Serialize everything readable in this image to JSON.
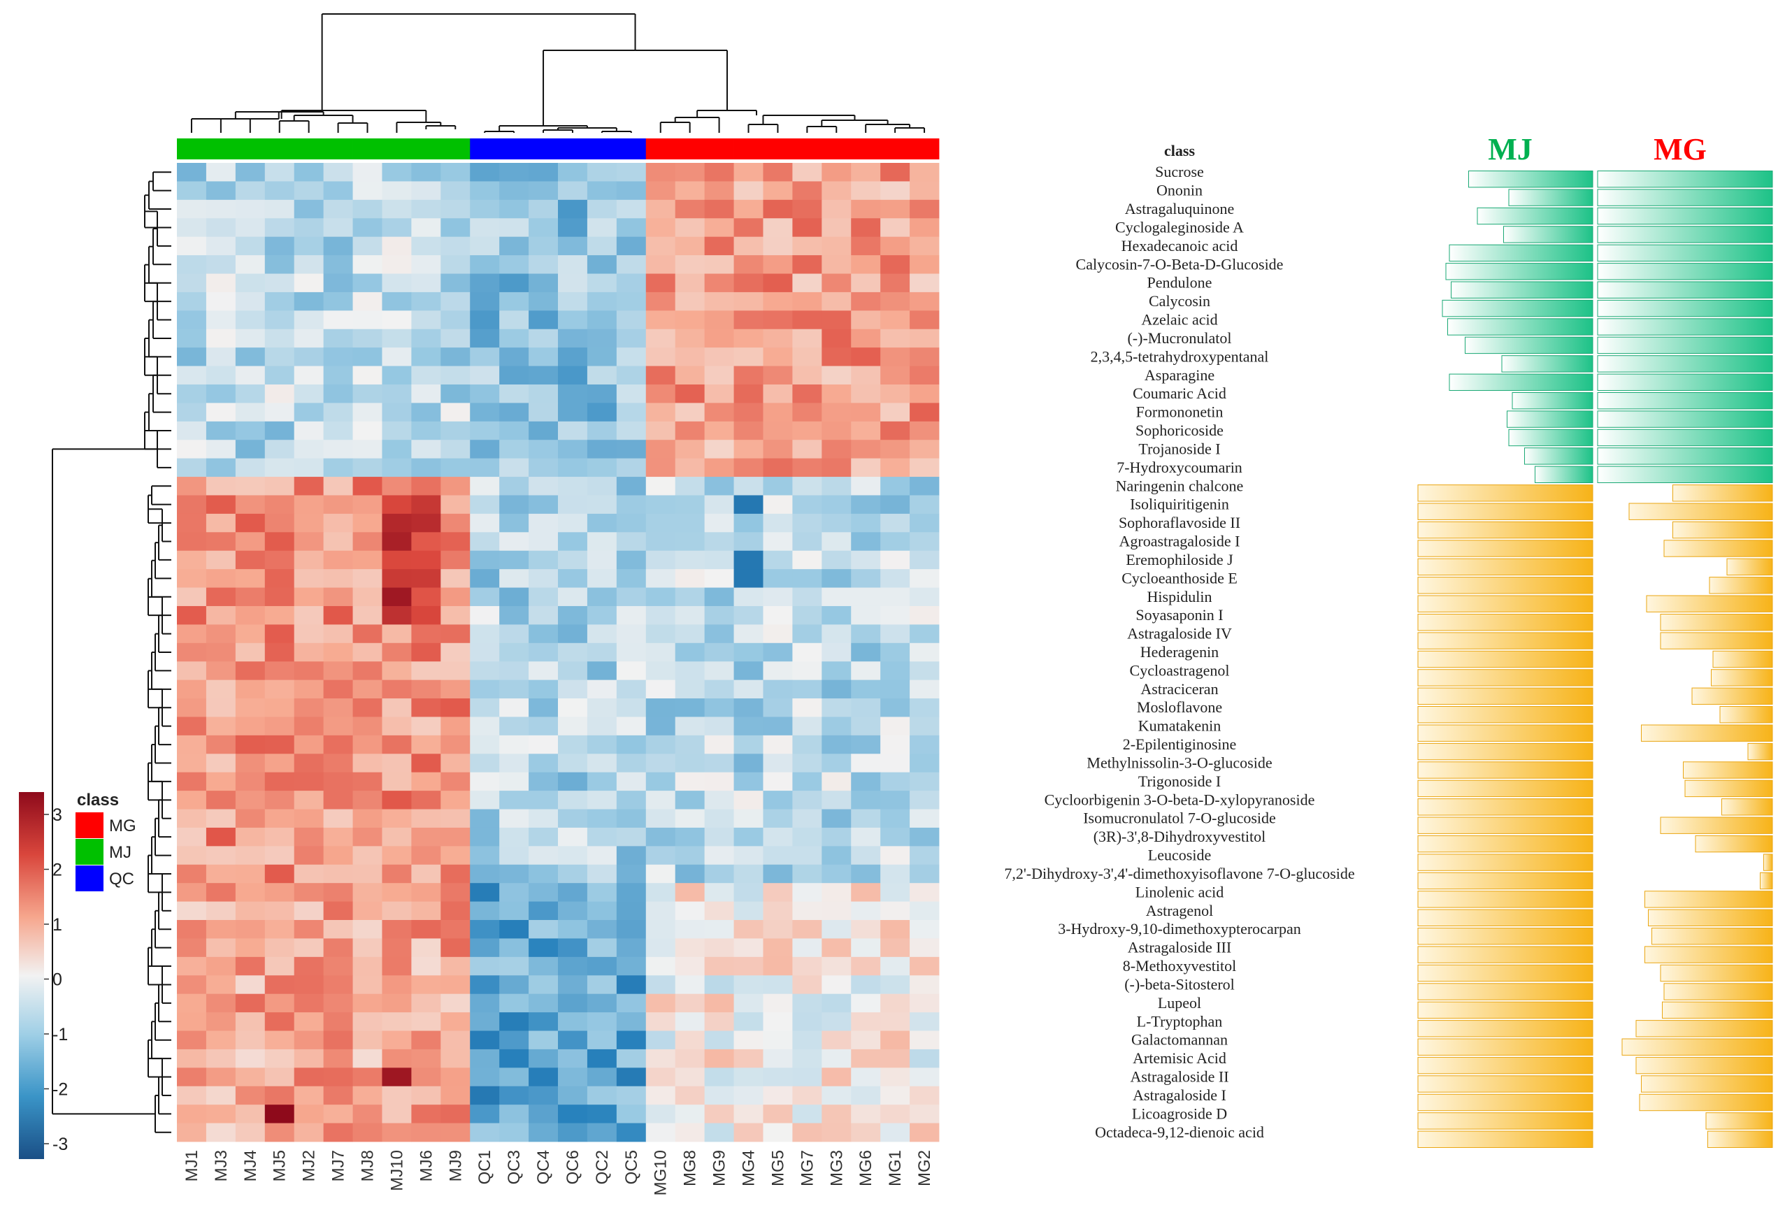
{
  "colors": {
    "MG": "#ff0000",
    "MJ": "#00c000",
    "QC": "#0000ff",
    "bar_up": "#2ec58f",
    "bar_down": "#f5b51c"
  },
  "legend": {
    "title": "class",
    "entries": [
      {
        "label": "MG",
        "color": "#ff0000"
      },
      {
        "label": "MJ",
        "color": "#00c000"
      },
      {
        "label": "QC",
        "color": "#0000ff"
      }
    ],
    "scale_ticks": [
      "3",
      "2",
      "1",
      "0",
      "-1",
      "-2",
      "-3"
    ]
  },
  "chart_data": [
    {
      "type": "heatmap",
      "title": "",
      "column_labels": [
        "MJ1",
        "MJ3",
        "MJ4",
        "MJ5",
        "MJ2",
        "MJ7",
        "MJ8",
        "MJ10",
        "MJ6",
        "MJ9",
        "QC1",
        "QC3",
        "QC4",
        "QC6",
        "QC2",
        "QC5",
        "MG10",
        "MG8",
        "MG9",
        "MG4",
        "MG5",
        "MG7",
        "MG3",
        "MG6",
        "MG1",
        "MG2"
      ],
      "column_classes": [
        "MJ",
        "MJ",
        "MJ",
        "MJ",
        "MJ",
        "MJ",
        "MJ",
        "MJ",
        "MJ",
        "MJ",
        "QC",
        "QC",
        "QC",
        "QC",
        "QC",
        "QC",
        "MG",
        "MG",
        "MG",
        "MG",
        "MG",
        "MG",
        "MG",
        "MG",
        "MG",
        "MG"
      ],
      "row_labels": [
        "Sucrose",
        "Ononin",
        "Astragaluquinone",
        "Cyclogaleginoside A",
        "Hexadecanoic acid",
        "Calycosin-7-O-Beta-D-Glucoside",
        "Pendulone",
        "Calycosin",
        "Azelaic acid",
        "(-)-Mucronulatol",
        "2,3,4,5-tetrahydroxypentanal",
        "Asparagine",
        "Coumaric Acid",
        "Formononetin",
        "Sophoricoside",
        "Trojanoside I",
        "7-Hydroxycoumarin",
        "Naringenin chalcone",
        "Isoliquiritigenin",
        "Sophoraflavoside II",
        "Agroastragaloside I",
        "Eremophiloside J",
        "Cycloeanthoside E",
        "Hispidulin",
        "Soyasaponin I",
        "Astragaloside IV",
        "Hederagenin",
        "Cycloastragenol",
        "Astraciceran",
        "Mosloflavone",
        "Kumatakenin",
        "2-Epilentiginosine",
        "Methylnissolin-3-O-glucoside",
        "Trigonoside I",
        "Cycloorbigenin 3-O-beta-D-xylopyranoside",
        "Isomucronulatol 7-O-glucoside",
        "(3R)-3',8-Dihydroxyvestitol",
        "Leucoside",
        "7,2'-Dihydroxy-3',4'-dimethoxyisoflavone 7-O-glucoside",
        "Linolenic acid",
        "Astragenol",
        "3-Hydroxy-9,10-dimethoxypterocarpan",
        "Astragaloside III",
        "8-Methoxyvestitol",
        "(-)-beta-Sitosterol",
        "Lupeol",
        "L-Tryptophan",
        "Galactomannan",
        "Artemisic Acid",
        "Astragaloside II",
        "Astragaloside I",
        "Licoagroside D",
        "Octadeca-9,12-dienoic acid"
      ],
      "row_annotation_title": "class",
      "color_scale": {
        "min": -3,
        "max": 3,
        "low": "#1c5f9c",
        "mid": "#f2f2f2",
        "high": "#8e0a1b",
        "label": "class"
      },
      "dendrogram": "rows and columns clustered"
    },
    {
      "type": "bar",
      "title": "MJ",
      "title_color": "#00b050",
      "orientation": "horizontal",
      "series": [
        {
          "name": "MJ",
          "values": [
            0.71,
            0.48,
            0.66,
            0.51,
            0.82,
            0.84,
            0.81,
            0.86,
            0.83,
            0.73,
            0.52,
            0.82,
            0.46,
            0.49,
            0.48,
            0.39,
            0.33,
            1.0,
            1.0,
            1.0,
            1.0,
            1.0,
            1.0,
            1.0,
            1.0,
            1.0,
            1.0,
            1.0,
            1.0,
            1.0,
            1.0,
            1.0,
            1.0,
            1.0,
            1.0,
            1.0,
            1.0,
            1.0,
            1.0,
            1.0,
            1.0,
            1.0,
            1.0,
            1.0,
            1.0,
            1.0,
            1.0,
            1.0,
            1.0,
            1.0,
            1.0,
            1.0,
            1.0
          ]
        }
      ]
    },
    {
      "type": "bar",
      "title": "MG",
      "title_color": "#ff0000",
      "orientation": "horizontal",
      "series": [
        {
          "name": "MG",
          "values": [
            1.0,
            1.0,
            1.0,
            1.0,
            1.0,
            1.0,
            1.0,
            1.0,
            1.0,
            1.0,
            1.0,
            1.0,
            1.0,
            1.0,
            1.0,
            1.0,
            1.0,
            0.57,
            0.82,
            0.57,
            0.62,
            0.26,
            0.36,
            0.72,
            0.64,
            0.64,
            0.34,
            0.35,
            0.46,
            0.3,
            0.75,
            0.14,
            0.51,
            0.5,
            0.29,
            0.64,
            0.44,
            0.05,
            0.07,
            0.73,
            0.71,
            0.69,
            0.73,
            0.64,
            0.62,
            0.63,
            0.78,
            0.86,
            0.78,
            0.75,
            0.76,
            0.38,
            0.37
          ]
        }
      ]
    }
  ]
}
